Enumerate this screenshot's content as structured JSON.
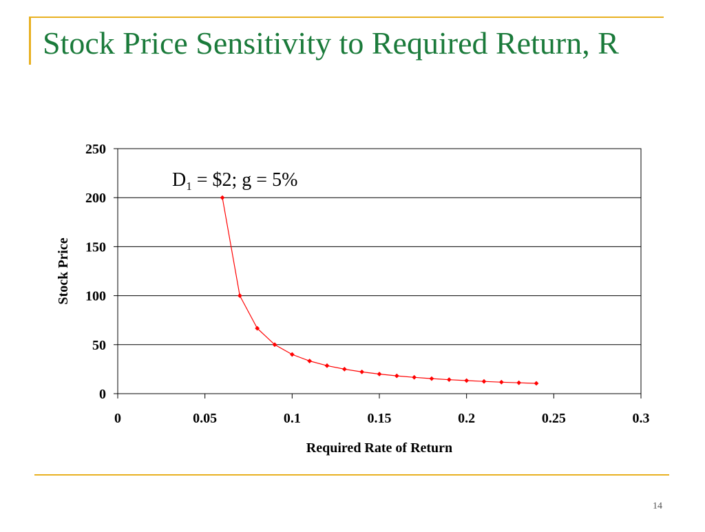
{
  "slide": {
    "title": "Stock Price Sensitivity to Required Return, R",
    "page_number": "14",
    "colors": {
      "title": "#1a7a3a",
      "accent_lines": "#e8b020",
      "series": "#ff0000"
    }
  },
  "chart_data": {
    "type": "line",
    "title": "",
    "xlabel": "Required Rate of Return",
    "ylabel": "Stock Price",
    "xlim": [
      0,
      0.3
    ],
    "ylim": [
      0,
      250
    ],
    "x_ticks": [
      "0",
      "0.05",
      "0.1",
      "0.15",
      "0.2",
      "0.25",
      "0.3"
    ],
    "y_ticks": [
      "0",
      "50",
      "100",
      "150",
      "200",
      "250"
    ],
    "grid": "horizontal",
    "annotation": {
      "main": "D",
      "sub": "1",
      "rest": " = $2; g = 5%"
    },
    "series": [
      {
        "color": "#ff0000",
        "marker": "diamond",
        "points": [
          {
            "x": 0.06,
            "y": 200.0
          },
          {
            "x": 0.07,
            "y": 100.0
          },
          {
            "x": 0.08,
            "y": 66.67
          },
          {
            "x": 0.09,
            "y": 50.0
          },
          {
            "x": 0.1,
            "y": 40.0
          },
          {
            "x": 0.11,
            "y": 33.33
          },
          {
            "x": 0.12,
            "y": 28.57
          },
          {
            "x": 0.13,
            "y": 25.0
          },
          {
            "x": 0.14,
            "y": 22.22
          },
          {
            "x": 0.15,
            "y": 20.0
          },
          {
            "x": 0.16,
            "y": 18.18
          },
          {
            "x": 0.17,
            "y": 16.67
          },
          {
            "x": 0.18,
            "y": 15.38
          },
          {
            "x": 0.19,
            "y": 14.29
          },
          {
            "x": 0.2,
            "y": 13.33
          },
          {
            "x": 0.21,
            "y": 12.5
          },
          {
            "x": 0.22,
            "y": 11.76
          },
          {
            "x": 0.23,
            "y": 11.11
          },
          {
            "x": 0.24,
            "y": 10.53
          }
        ]
      }
    ]
  }
}
